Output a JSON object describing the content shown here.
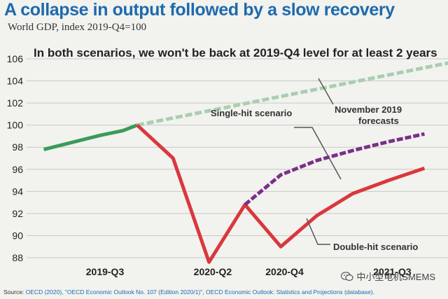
{
  "header": {
    "title": "A collapse in output followed by a slow recovery",
    "subtitle": "World GDP, index 2019-Q4=100"
  },
  "chart_data": {
    "type": "line",
    "title": "A collapse in output followed by a slow recovery",
    "subtitle": "World GDP, index 2019-Q4=100",
    "headline": "In both scenarios, we won't be back at 2019-Q4 level for at least 2 years",
    "ylim": [
      88,
      106
    ],
    "y_ticks": [
      "88",
      "90",
      "92",
      "94",
      "96",
      "98",
      "100",
      "102",
      "104",
      "106"
    ],
    "x_ticks": [
      {
        "label": "2019-Q3",
        "x": 0
      },
      {
        "label": "2020-Q2",
        "x": 3
      },
      {
        "label": "2020-Q4",
        "x": 5
      },
      {
        "label": "2021-Q3",
        "x": 8
      }
    ],
    "grid": true,
    "series": [
      {
        "name": "historical",
        "color": "#3a9a5b",
        "style": "solid",
        "points": [
          [
            -2.6,
            97.8
          ],
          [
            -1,
            99.1
          ],
          [
            -0.4,
            99.5
          ],
          [
            0,
            100
          ]
        ]
      },
      {
        "name": "November 2019 forecasts",
        "color": "#a8cfb0",
        "style": "dashed",
        "points": [
          [
            0,
            100
          ],
          [
            9.4,
            106.1
          ]
        ]
      },
      {
        "name": "Double-hit scenario",
        "color": "#d9383e",
        "style": "solid",
        "points": [
          [
            0,
            100
          ],
          [
            1,
            97
          ],
          [
            2,
            87.6
          ],
          [
            3,
            92.8
          ],
          [
            4,
            89
          ],
          [
            5,
            91.8
          ],
          [
            6,
            93.8
          ],
          [
            7,
            95
          ],
          [
            8,
            96.1
          ]
        ]
      },
      {
        "name": "Single-hit scenario",
        "color": "#7a2f8a",
        "style": "dashed",
        "points": [
          [
            3,
            92.8
          ],
          [
            4,
            95.5
          ],
          [
            5,
            96.8
          ],
          [
            6,
            97.7
          ],
          [
            7,
            98.5
          ],
          [
            8,
            99.2
          ]
        ]
      }
    ],
    "annotations": [
      {
        "text": "Single-hit scenario"
      },
      {
        "text": "November 2019"
      },
      {
        "text": "forecasts"
      },
      {
        "text": "Double-hit scenario"
      }
    ]
  },
  "source": {
    "prefix": "Source: ",
    "link": "OECD (2020), \"OECD Economic Outlook No. 107 (Edition 2020/1)\", OECD Economic Outlook: Statistics and Projections (database)",
    "suffix": "."
  },
  "watermark": {
    "text": "中小型电机SMEMS",
    "icon": "wechat-icon"
  }
}
